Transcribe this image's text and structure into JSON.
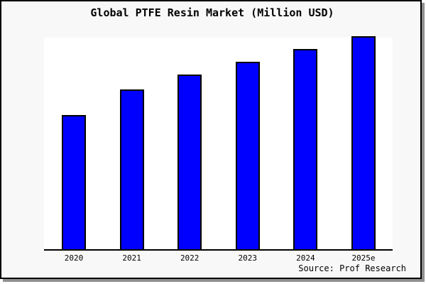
{
  "header": {
    "title": "Global PTFE Resin Market (Million USD)"
  },
  "footer": {
    "source": "Source: Prof Research"
  },
  "chart_data": {
    "type": "bar",
    "title": "Global PTFE Resin Market (Million USD)",
    "categories": [
      "2020",
      "2021",
      "2022",
      "2023",
      "2024",
      "2025e"
    ],
    "values": [
      63,
      75,
      82,
      88,
      94,
      100
    ],
    "values_note": "y-axis is unlabeled in the chart; values are relative units estimated from bar heights with 2025e = 100",
    "xlabel": "",
    "ylabel": "",
    "ylim": [
      0,
      100
    ],
    "grid": false,
    "legend": false,
    "annotations": [
      "Source: Prof Research"
    ],
    "bar_color": "#0000ff",
    "bar_border_color": "#000000"
  },
  "colors": {
    "background": "#f8f8f8",
    "plot_background": "#ffffff",
    "bar_fill": "#0000ff",
    "frame_border": "#000000",
    "shadow": "#909090",
    "text": "#000000"
  }
}
